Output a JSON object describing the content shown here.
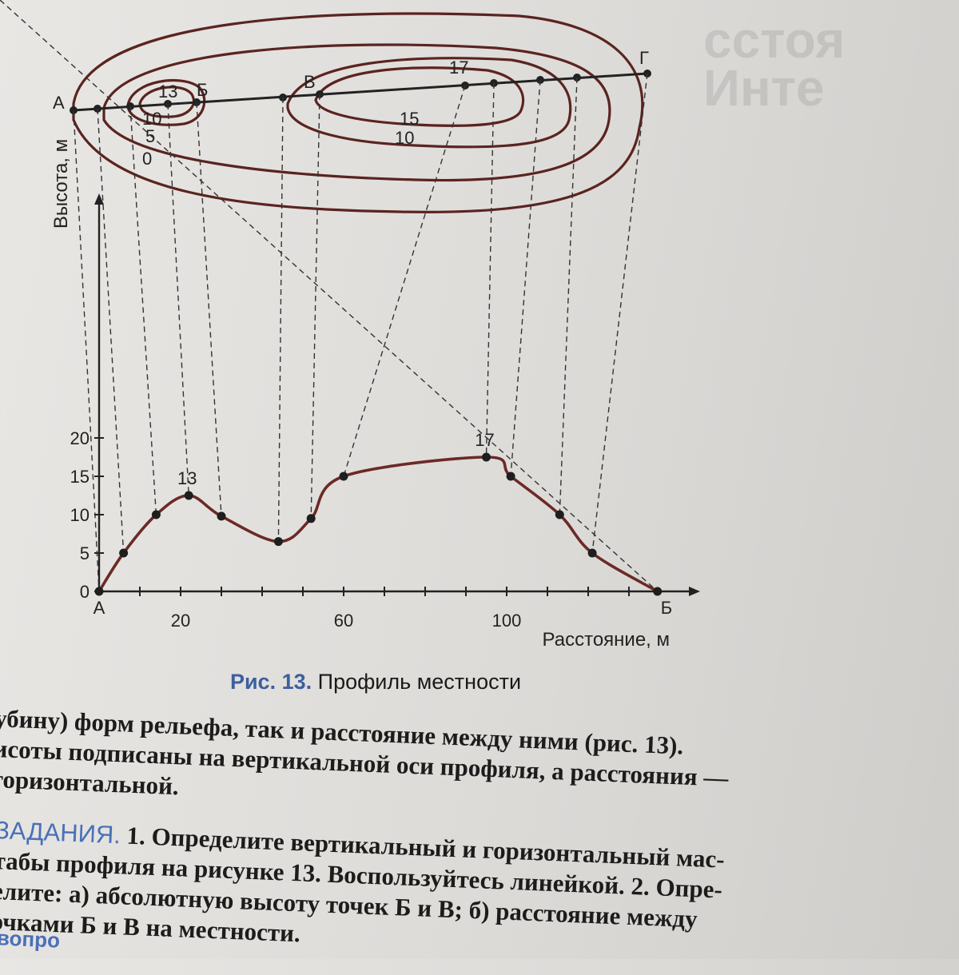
{
  "map": {
    "point_labels": [
      "А",
      "Б",
      "В",
      "Г"
    ],
    "contour_labels": [
      "13",
      "10",
      "5",
      "0",
      "17",
      "15",
      "10"
    ]
  },
  "chart_data": {
    "type": "line",
    "title": "",
    "ylabel": "Высота, м",
    "xlabel": "Расстояние, м",
    "xlim": [
      0,
      140
    ],
    "ylim": [
      0,
      20
    ],
    "x_ticks": [
      20,
      60,
      100
    ],
    "y_ticks": [
      0,
      5,
      10,
      15,
      20
    ],
    "x_end_labels": [
      "А",
      "Б"
    ],
    "series": [
      {
        "x": [
          0,
          6,
          14,
          22,
          30,
          44,
          52,
          60,
          95,
          101,
          113,
          121,
          137
        ],
        "y": [
          0,
          5,
          10,
          12.5,
          9.8,
          6.5,
          9.5,
          15,
          17.5,
          15,
          10,
          5,
          0
        ]
      }
    ],
    "annotations": [
      {
        "text": "13",
        "x": 22,
        "y": 12.5
      },
      {
        "text": "17",
        "x": 95,
        "y": 17.5
      }
    ],
    "line_color": "#6b2a26",
    "grid": false
  },
  "caption": {
    "prefix": "Рис.",
    "number": "13.",
    "text": "Профиль местности"
  },
  "paragraph": [
    "убину) форм рельефа, так и расстояние между ними (рис. 13).",
    "исоты подписаны на вертикальной оси профиля, а расстояния —",
    " горизонтальной."
  ],
  "tasks": {
    "label": "ЗАДАНИЯ.",
    "lines": [
      " 1. Определите вертикальный и горизонтальный мас-",
      "табы профиля на рисунке 13. Воспользуйтесь линейкой. 2. Опре-",
      "елите: а) абсолютную высоту точек Б и В; б) расстояние между",
      "очками Б и В на местности."
    ]
  },
  "bottom_word": "вопро",
  "ghost_text": [
    "сстоя",
    "Инте"
  ]
}
